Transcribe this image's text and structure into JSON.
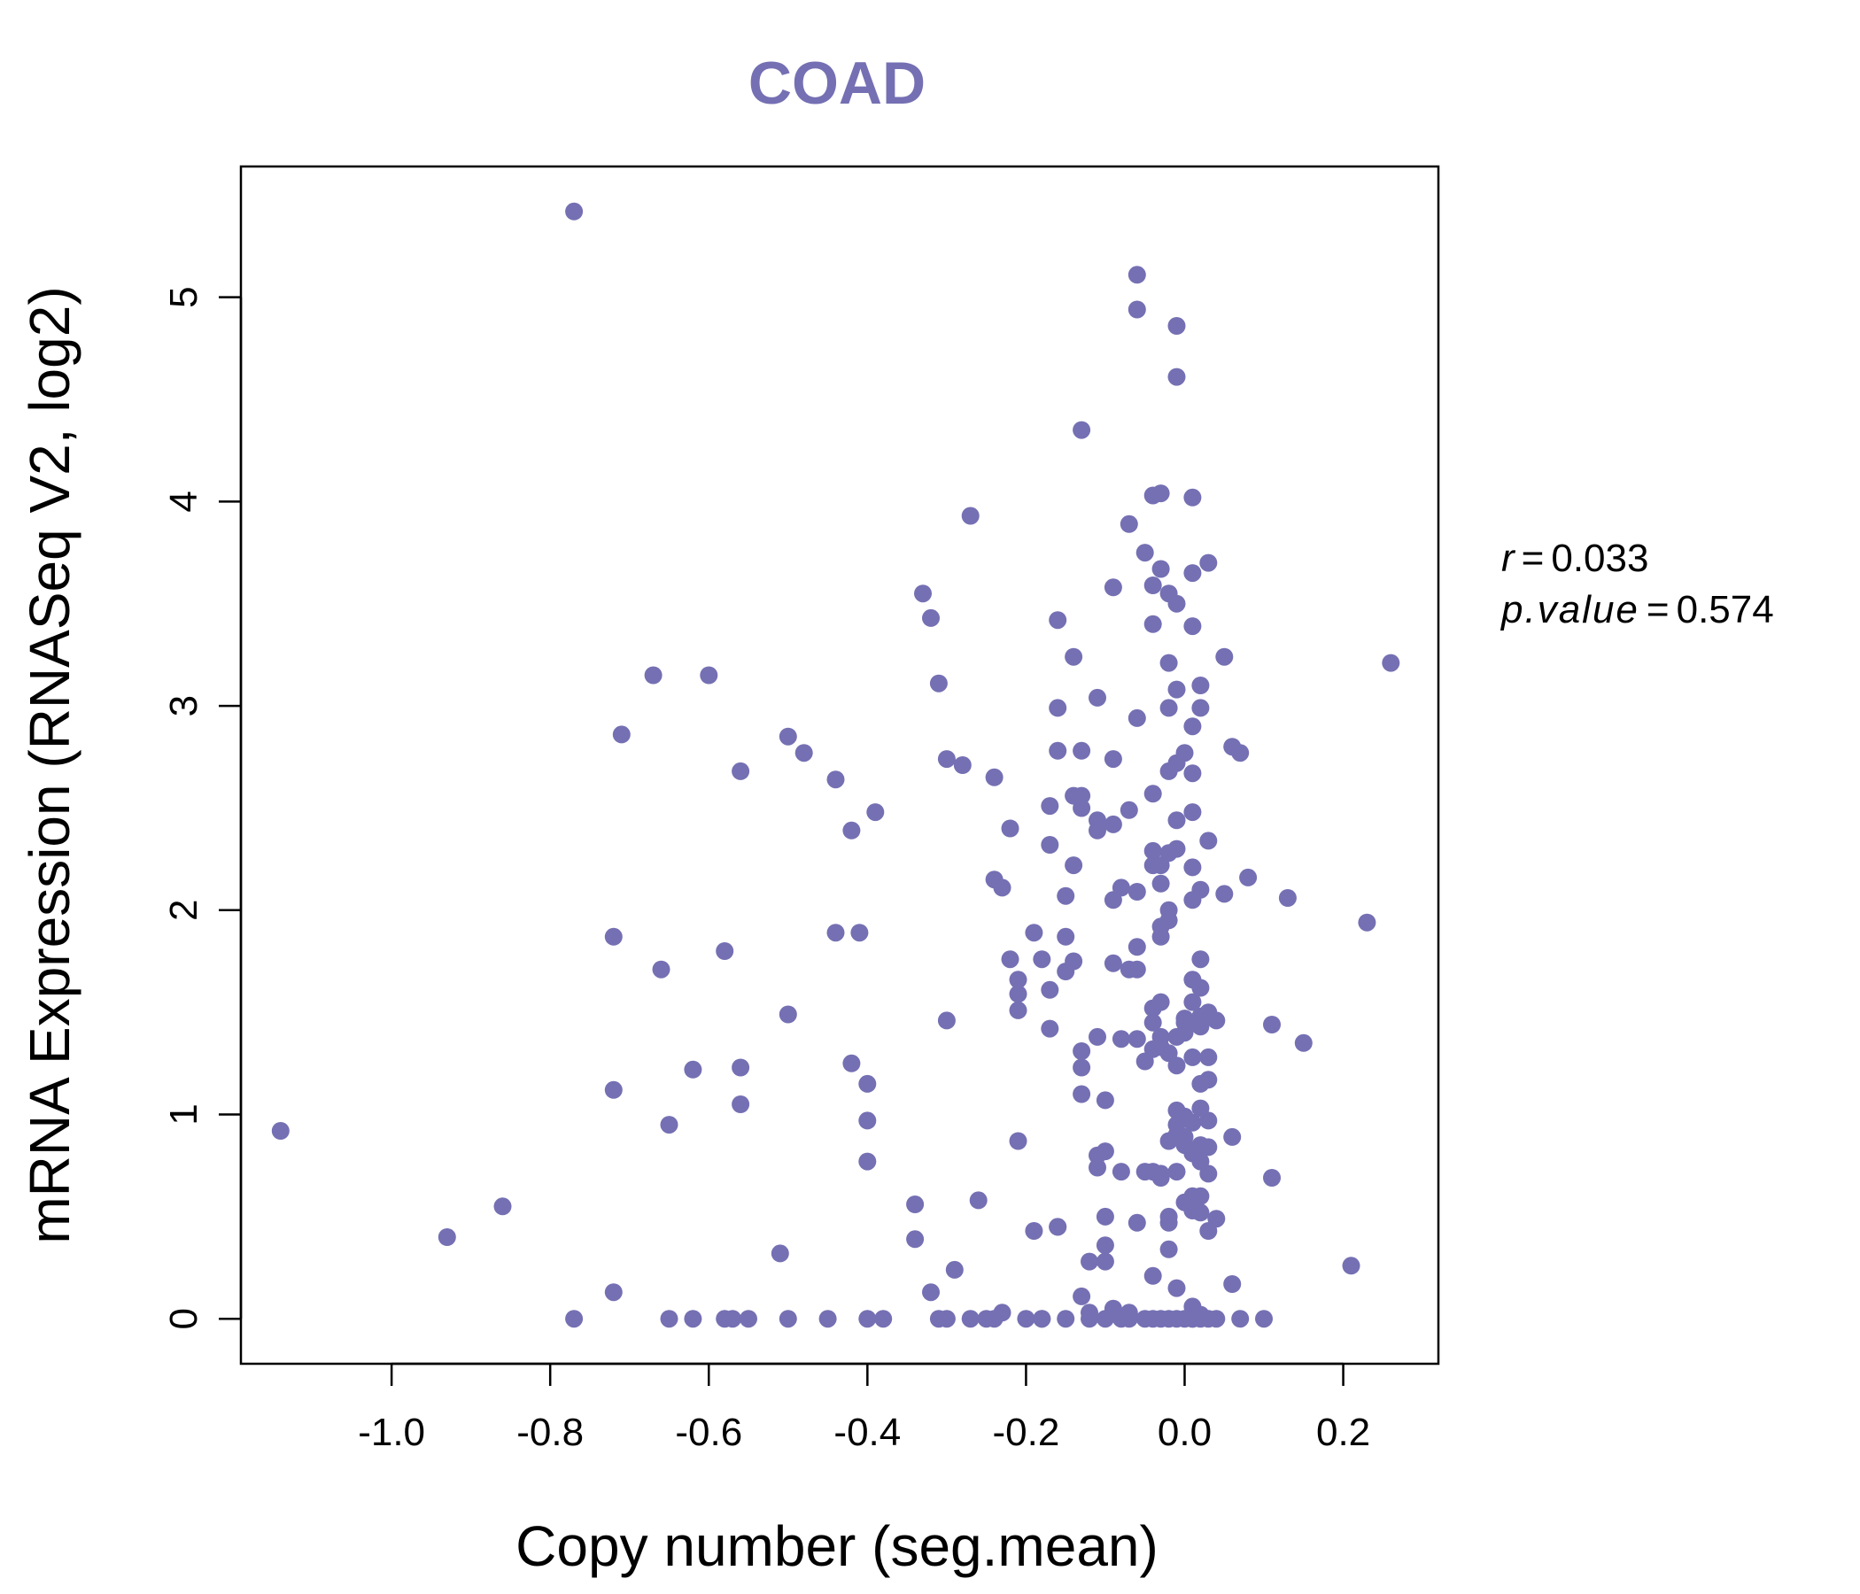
{
  "colors": {
    "accent": "#7570B3",
    "axis": "#000000"
  },
  "chart_data": {
    "type": "scatter",
    "title": "COAD",
    "xlabel": "Copy number (seg.mean)",
    "ylabel": "mRNA Expression (RNASeq V2, log2)",
    "xlim": [
      -1.19,
      0.32
    ],
    "ylim": [
      -0.22,
      5.64
    ],
    "x_ticks": [
      -1.0,
      -0.8,
      -0.6,
      -0.4,
      -0.2,
      0.0,
      0.2
    ],
    "x_tick_labels": [
      "-1.0",
      "-0.8",
      "-0.6",
      "-0.4",
      "-0.2",
      "0.0",
      "0.2"
    ],
    "y_ticks": [
      0,
      1,
      2,
      3,
      4,
      5
    ],
    "y_tick_labels": [
      "0",
      "1",
      "2",
      "3",
      "4",
      "5"
    ],
    "stats": {
      "r_label": "r",
      "r_value": "0.033",
      "p_label": "p.value",
      "p_value": "0.574"
    },
    "points": [
      [
        -1.14,
        0.92
      ],
      [
        -0.93,
        0.4
      ],
      [
        -0.86,
        0.55
      ],
      [
        -0.77,
        5.42
      ],
      [
        -0.77,
        0.0
      ],
      [
        -0.72,
        0.13
      ],
      [
        -0.72,
        1.87
      ],
      [
        -0.72,
        1.12
      ],
      [
        -0.71,
        2.86
      ],
      [
        -0.67,
        3.15
      ],
      [
        -0.66,
        1.71
      ],
      [
        -0.65,
        0.95
      ],
      [
        -0.65,
        0.0
      ],
      [
        -0.62,
        1.22
      ],
      [
        -0.62,
        0.0
      ],
      [
        -0.6,
        3.15
      ],
      [
        -0.58,
        1.8
      ],
      [
        -0.58,
        0.0
      ],
      [
        -0.57,
        0.0
      ],
      [
        -0.56,
        2.68
      ],
      [
        -0.56,
        1.23
      ],
      [
        -0.56,
        1.05
      ],
      [
        -0.55,
        0.0
      ],
      [
        -0.5,
        2.85
      ],
      [
        -0.5,
        1.49
      ],
      [
        -0.5,
        0.0
      ],
      [
        -0.51,
        0.32
      ],
      [
        -0.48,
        2.77
      ],
      [
        -0.45,
        0.0
      ],
      [
        -0.44,
        2.64
      ],
      [
        -0.44,
        1.89
      ],
      [
        -0.42,
        2.39
      ],
      [
        -0.42,
        1.25
      ],
      [
        -0.41,
        1.89
      ],
      [
        -0.4,
        1.15
      ],
      [
        -0.4,
        0.97
      ],
      [
        -0.4,
        0.77
      ],
      [
        -0.4,
        0.0
      ],
      [
        -0.39,
        2.48
      ],
      [
        -0.38,
        0.0
      ],
      [
        -0.34,
        0.56
      ],
      [
        -0.34,
        0.39
      ],
      [
        -0.33,
        3.55
      ],
      [
        -0.32,
        3.43
      ],
      [
        -0.32,
        0.13
      ],
      [
        -0.31,
        3.11
      ],
      [
        -0.3,
        1.46
      ],
      [
        -0.3,
        0.0
      ],
      [
        -0.31,
        0.0
      ],
      [
        -0.3,
        2.74
      ],
      [
        -0.29,
        0.24
      ],
      [
        -0.28,
        2.71
      ],
      [
        -0.27,
        3.93
      ],
      [
        -0.27,
        0.0
      ],
      [
        -0.26,
        0.58
      ],
      [
        -0.25,
        0.0
      ],
      [
        -0.24,
        2.65
      ],
      [
        -0.24,
        2.15
      ],
      [
        -0.23,
        2.11
      ],
      [
        -0.24,
        0.0
      ],
      [
        -0.23,
        0.03
      ],
      [
        -0.22,
        2.4
      ],
      [
        -0.22,
        1.76
      ],
      [
        -0.21,
        1.66
      ],
      [
        -0.21,
        1.59
      ],
      [
        -0.21,
        1.51
      ],
      [
        -0.21,
        0.87
      ],
      [
        -0.2,
        0.0
      ],
      [
        -0.19,
        1.89
      ],
      [
        -0.19,
        0.43
      ],
      [
        -0.18,
        1.76
      ],
      [
        -0.18,
        0.0
      ],
      [
        -0.18,
        0.0
      ],
      [
        -0.17,
        1.61
      ],
      [
        -0.17,
        2.32
      ],
      [
        -0.17,
        2.51
      ],
      [
        -0.17,
        1.42
      ],
      [
        -0.16,
        3.42
      ],
      [
        -0.16,
        2.99
      ],
      [
        -0.16,
        2.78
      ],
      [
        -0.16,
        0.45
      ],
      [
        -0.16,
        0.45
      ],
      [
        -0.15,
        2.07
      ],
      [
        -0.15,
        1.7
      ],
      [
        -0.15,
        1.87
      ],
      [
        -0.15,
        0.0
      ],
      [
        -0.14,
        2.56
      ],
      [
        -0.14,
        2.22
      ],
      [
        -0.14,
        1.75
      ],
      [
        -0.14,
        3.24
      ],
      [
        -0.13,
        0.11
      ],
      [
        -0.13,
        1.31
      ],
      [
        -0.13,
        1.23
      ],
      [
        -0.13,
        1.1
      ],
      [
        -0.13,
        2.56
      ],
      [
        -0.13,
        2.5
      ],
      [
        -0.13,
        2.78
      ],
      [
        -0.13,
        4.35
      ],
      [
        -0.12,
        0.03
      ],
      [
        -0.12,
        0.28
      ],
      [
        -0.12,
        0.0
      ],
      [
        -0.11,
        3.04
      ],
      [
        -0.11,
        2.39
      ],
      [
        -0.11,
        2.44
      ],
      [
        -0.11,
        1.38
      ],
      [
        -0.11,
        0.8
      ],
      [
        -0.11,
        0.74
      ],
      [
        -0.1,
        0.82
      ],
      [
        -0.1,
        1.07
      ],
      [
        -0.1,
        0.28
      ],
      [
        -0.1,
        0.5
      ],
      [
        -0.1,
        0.36
      ],
      [
        -0.1,
        0.0
      ],
      [
        -0.09,
        2.74
      ],
      [
        -0.09,
        2.42
      ],
      [
        -0.09,
        2.05
      ],
      [
        -0.09,
        1.74
      ],
      [
        -0.09,
        3.58
      ],
      [
        -0.09,
        0.05
      ],
      [
        -0.08,
        1.37
      ],
      [
        -0.08,
        0.0
      ],
      [
        -0.08,
        2.11
      ],
      [
        -0.08,
        0.72
      ],
      [
        -0.07,
        3.89
      ],
      [
        -0.07,
        2.49
      ],
      [
        -0.07,
        1.71
      ],
      [
        -0.07,
        0.03
      ],
      [
        -0.07,
        0.0
      ],
      [
        -0.06,
        2.94
      ],
      [
        -0.06,
        2.09
      ],
      [
        -0.06,
        1.82
      ],
      [
        -0.06,
        1.71
      ],
      [
        -0.06,
        1.37
      ],
      [
        -0.06,
        0.47
      ],
      [
        -0.06,
        5.11
      ],
      [
        -0.06,
        4.94
      ],
      [
        -0.05,
        3.75
      ],
      [
        -0.05,
        1.26
      ],
      [
        -0.05,
        0.72
      ],
      [
        -0.05,
        0.0
      ],
      [
        -0.04,
        3.59
      ],
      [
        -0.04,
        3.4
      ],
      [
        -0.04,
        4.03
      ],
      [
        -0.04,
        2.22
      ],
      [
        -0.04,
        1.52
      ],
      [
        -0.04,
        1.45
      ],
      [
        -0.04,
        1.32
      ],
      [
        -0.04,
        0.72
      ],
      [
        -0.04,
        0.21
      ],
      [
        -0.04,
        0.0
      ],
      [
        -0.04,
        2.57
      ],
      [
        -0.04,
        2.29
      ],
      [
        -0.03,
        4.04
      ],
      [
        -0.03,
        3.67
      ],
      [
        -0.03,
        2.22
      ],
      [
        -0.03,
        2.13
      ],
      [
        -0.03,
        1.92
      ],
      [
        -0.03,
        1.87
      ],
      [
        -0.03,
        1.55
      ],
      [
        -0.03,
        1.38
      ],
      [
        -0.03,
        1.33
      ],
      [
        -0.03,
        0.69
      ],
      [
        -0.03,
        0.71
      ],
      [
        -0.03,
        0.0
      ],
      [
        -0.02,
        3.21
      ],
      [
        -0.02,
        2.99
      ],
      [
        -0.02,
        2.68
      ],
      [
        -0.02,
        2.28
      ],
      [
        -0.02,
        1.95
      ],
      [
        -0.02,
        0.87
      ],
      [
        -0.02,
        0.5
      ],
      [
        -0.02,
        0.0
      ],
      [
        -0.02,
        3.55
      ],
      [
        -0.02,
        2.0
      ],
      [
        -0.02,
        1.3
      ],
      [
        -0.02,
        0.34
      ],
      [
        -0.02,
        0.47
      ],
      [
        -0.01,
        4.86
      ],
      [
        -0.01,
        4.61
      ],
      [
        -0.01,
        3.08
      ],
      [
        -0.01,
        2.3
      ],
      [
        -0.01,
        1.24
      ],
      [
        -0.01,
        1.38
      ],
      [
        -0.01,
        1.02
      ],
      [
        -0.01,
        0.9
      ],
      [
        -0.01,
        0.95
      ],
      [
        -0.01,
        0.72
      ],
      [
        -0.01,
        0.15
      ],
      [
        -0.01,
        0.0
      ],
      [
        -0.01,
        3.5
      ],
      [
        -0.01,
        2.72
      ],
      [
        -0.01,
        2.44
      ],
      [
        0.0,
        2.77
      ],
      [
        0.0,
        1.47
      ],
      [
        0.0,
        1.4
      ],
      [
        0.0,
        0.99
      ],
      [
        0.0,
        0.89
      ],
      [
        0.0,
        0.57
      ],
      [
        0.0,
        0.0
      ],
      [
        0.0,
        1.45
      ],
      [
        0.0,
        0.85
      ],
      [
        0.01,
        2.67
      ],
      [
        0.01,
        2.21
      ],
      [
        0.01,
        2.05
      ],
      [
        0.01,
        1.66
      ],
      [
        0.01,
        1.28
      ],
      [
        0.01,
        0.96
      ],
      [
        0.01,
        0.81
      ],
      [
        0.01,
        0.6
      ],
      [
        0.01,
        0.53
      ],
      [
        0.01,
        0.06
      ],
      [
        0.01,
        0.0
      ],
      [
        0.01,
        4.02
      ],
      [
        0.01,
        3.39
      ],
      [
        0.01,
        2.9
      ],
      [
        0.01,
        1.55
      ],
      [
        0.01,
        0.0
      ],
      [
        0.01,
        3.65
      ],
      [
        0.01,
        2.48
      ],
      [
        0.02,
        3.1
      ],
      [
        0.02,
        2.99
      ],
      [
        0.02,
        2.1
      ],
      [
        0.02,
        1.62
      ],
      [
        0.02,
        1.48
      ],
      [
        0.02,
        1.03
      ],
      [
        0.02,
        0.85
      ],
      [
        0.02,
        0.77
      ],
      [
        0.02,
        0.6
      ],
      [
        0.02,
        0.52
      ],
      [
        0.02,
        0.0
      ],
      [
        0.02,
        1.76
      ],
      [
        0.02,
        1.43
      ],
      [
        0.02,
        0.02
      ],
      [
        0.02,
        1.15
      ],
      [
        0.03,
        3.7
      ],
      [
        0.03,
        2.34
      ],
      [
        0.03,
        1.5
      ],
      [
        0.03,
        1.17
      ],
      [
        0.03,
        0.97
      ],
      [
        0.03,
        0.84
      ],
      [
        0.03,
        0.71
      ],
      [
        0.03,
        0.43
      ],
      [
        0.03,
        0.0
      ],
      [
        0.03,
        1.28
      ],
      [
        0.04,
        1.46
      ],
      [
        0.04,
        0.49
      ],
      [
        0.04,
        0.0
      ],
      [
        0.05,
        3.24
      ],
      [
        0.05,
        2.08
      ],
      [
        0.06,
        2.8
      ],
      [
        0.06,
        0.89
      ],
      [
        0.06,
        0.17
      ],
      [
        0.07,
        2.77
      ],
      [
        0.07,
        0.0
      ],
      [
        0.08,
        2.16
      ],
      [
        0.1,
        0.0
      ],
      [
        0.11,
        1.44
      ],
      [
        0.11,
        0.69
      ],
      [
        0.13,
        2.06
      ],
      [
        0.15,
        1.35
      ],
      [
        0.21,
        0.26
      ],
      [
        0.23,
        1.94
      ],
      [
        0.26,
        3.21
      ]
    ]
  }
}
